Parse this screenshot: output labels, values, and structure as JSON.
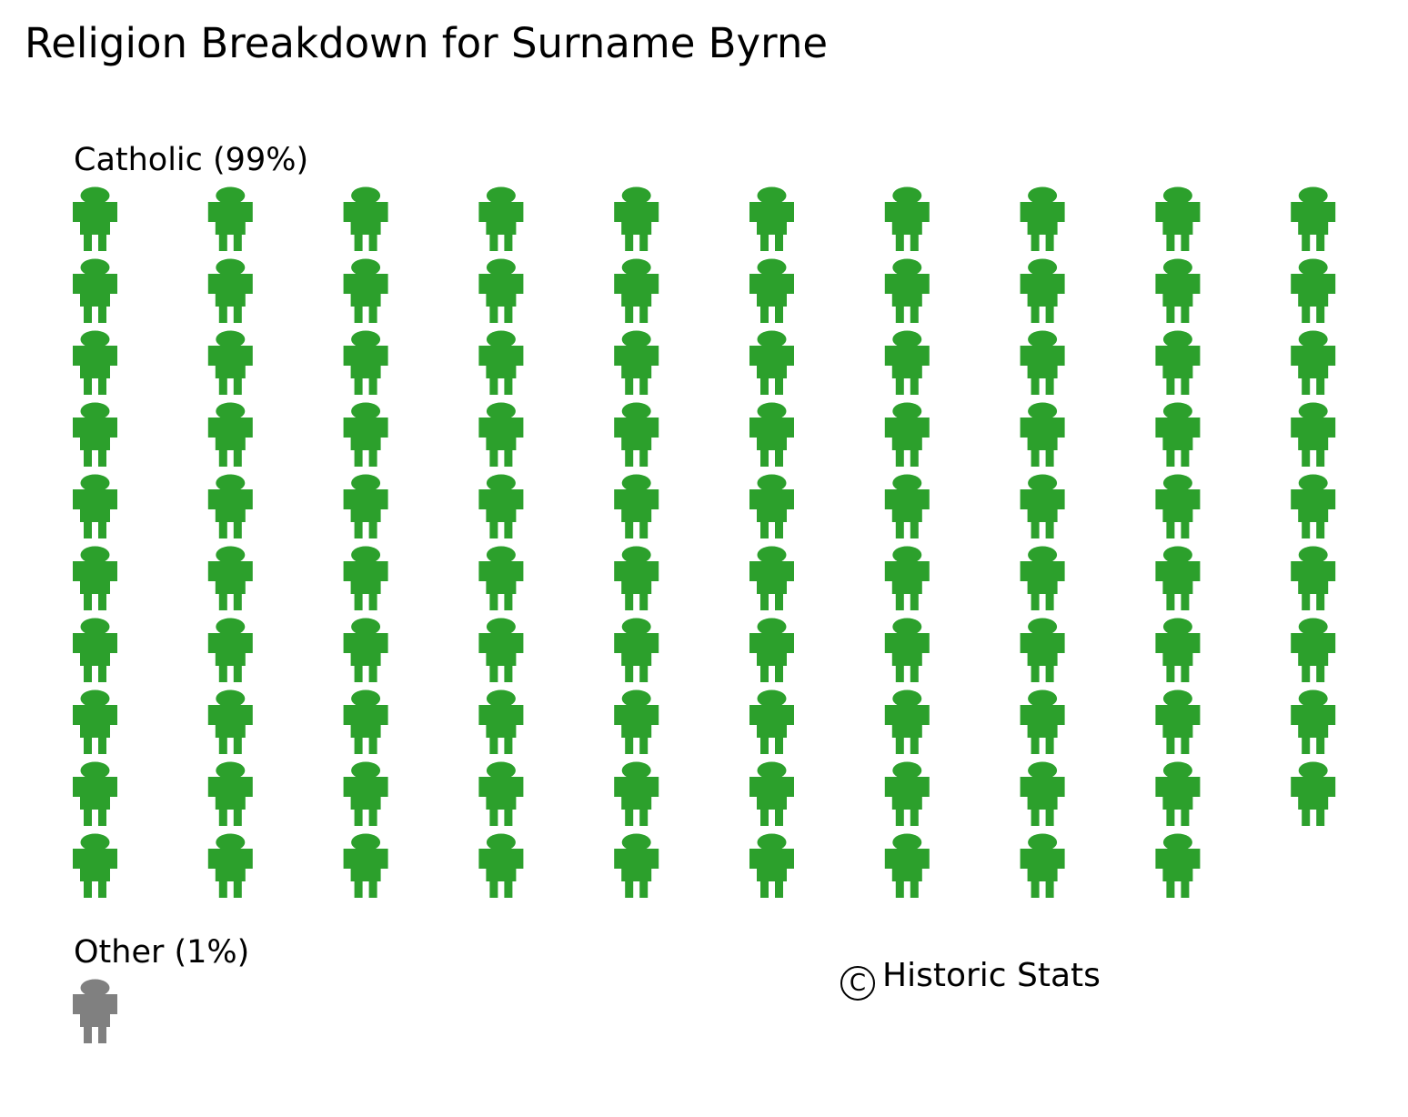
{
  "chart_data": {
    "type": "pictogram",
    "title": "Religion Breakdown for Surname Byrne",
    "columns": 10,
    "icon": "person-icon",
    "fill_order": "column-major",
    "groups": [
      {
        "name": "Catholic",
        "label": "Catholic (99%)",
        "percent": 99,
        "count": 99,
        "color": "#2ca02c"
      },
      {
        "name": "Other",
        "label": "Other (1%)",
        "percent": 1,
        "count": 1,
        "color": "#808080"
      }
    ],
    "credit": "Historic Stats",
    "credit_symbol": "C"
  }
}
